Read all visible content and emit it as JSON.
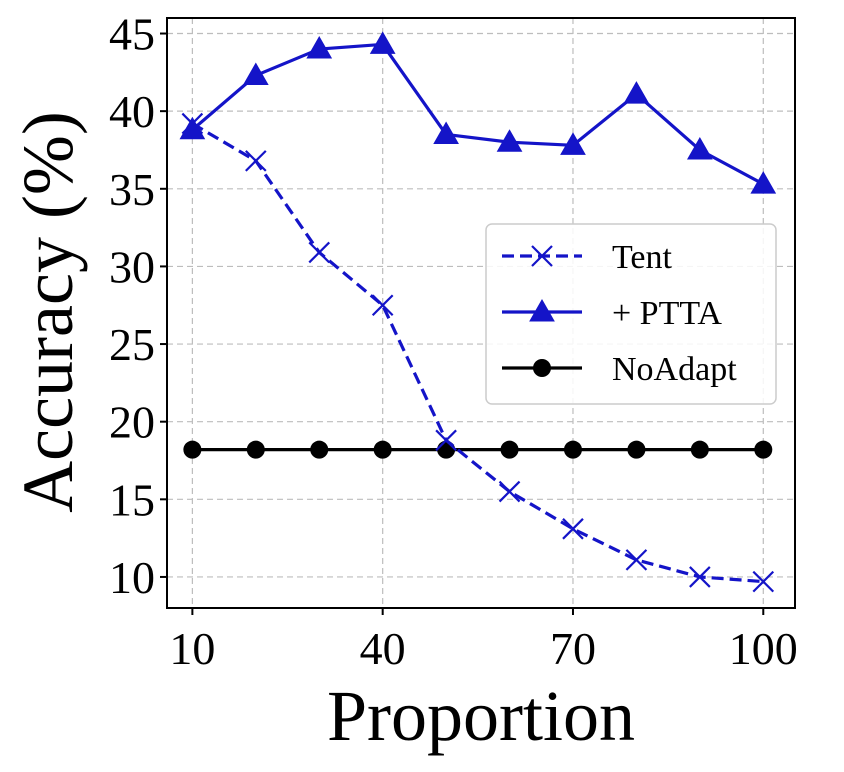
{
  "chart_data": {
    "type": "line",
    "title": "",
    "xlabel": "Proportion",
    "ylabel": "Accuracy (%)",
    "x": [
      10,
      20,
      30,
      40,
      50,
      60,
      70,
      80,
      90,
      100
    ],
    "xticks": [
      10,
      40,
      70,
      100
    ],
    "yticks": [
      10,
      15,
      20,
      25,
      30,
      35,
      40,
      45
    ],
    "xlim": [
      6,
      105
    ],
    "ylim": [
      8,
      46
    ],
    "grid": true,
    "legend_position": "center-right",
    "series": [
      {
        "name": "Tent",
        "color": "#1414c8",
        "line_style": "dashed",
        "marker": "x",
        "values": [
          39.2,
          36.8,
          30.9,
          27.5,
          18.8,
          15.5,
          13.1,
          11.1,
          10.0,
          9.7
        ]
      },
      {
        "name": "+ PTTA",
        "color": "#1414c8",
        "line_style": "solid",
        "marker": "triangle",
        "values": [
          38.8,
          42.3,
          44.0,
          44.3,
          38.5,
          38.0,
          37.8,
          41.1,
          37.5,
          35.3
        ]
      },
      {
        "name": "NoAdapt",
        "color": "#000000",
        "line_style": "solid",
        "marker": "circle",
        "values": [
          18.2,
          18.2,
          18.2,
          18.2,
          18.2,
          18.2,
          18.2,
          18.2,
          18.2,
          18.2
        ]
      }
    ]
  }
}
